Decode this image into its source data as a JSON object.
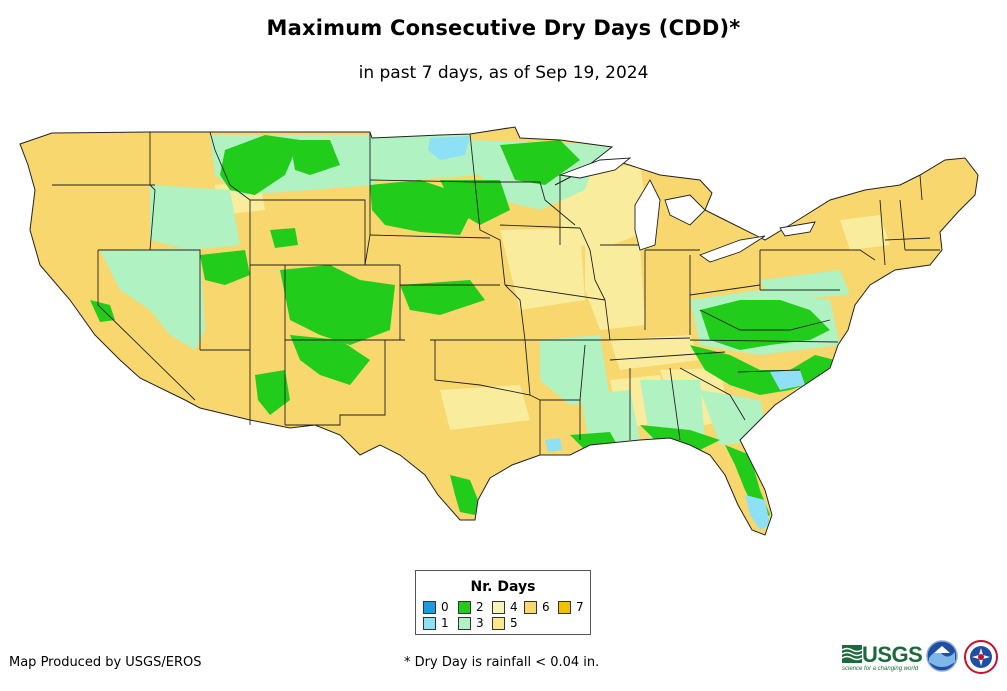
{
  "title": "Maximum Consecutive Dry Days (CDD)*",
  "subtitle": "in past 7 days, as of Sep 19, 2024",
  "legend": {
    "title": "Nr. Days",
    "items": [
      {
        "label": "0",
        "color": "#1c9be0"
      },
      {
        "label": "1",
        "color": "#8ee0f5"
      },
      {
        "label": "2",
        "color": "#22cc1b"
      },
      {
        "label": "3",
        "color": "#b1f2c2"
      },
      {
        "label": "4",
        "color": "#f5f3b8"
      },
      {
        "label": "5",
        "color": "#f9e98a"
      },
      {
        "label": "6",
        "color": "#f7d76e"
      },
      {
        "label": "7",
        "color": "#f2c000"
      }
    ]
  },
  "footer": {
    "produced_by": "Map Produced by USGS/EROS",
    "note": "* Dry Day is rainfall < 0.04 in."
  },
  "logos": {
    "usgs": "USGS",
    "usgs_tagline": "science for a changing world"
  },
  "map": {
    "land_color": "#f7d76e",
    "border_color": "#222222",
    "icons": [
      "united-states-map",
      "usgs-logo-icon",
      "noaa-logo-icon",
      "nws-logo-icon"
    ]
  }
}
